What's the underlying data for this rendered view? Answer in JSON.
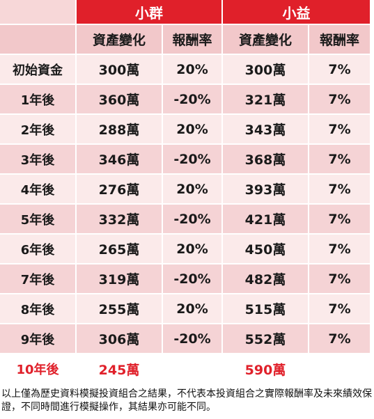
{
  "chart_data": {
    "type": "table",
    "groups": [
      "小群",
      "小益"
    ],
    "columns": [
      "資產變化",
      "報酬率",
      "資產變化",
      "報酬率"
    ],
    "rows": [
      {
        "label": "初始資金",
        "a_asset": "300萬",
        "a_rate": "20%",
        "b_asset": "300萬",
        "b_rate": "7%"
      },
      {
        "label": "1年後",
        "a_asset": "360萬",
        "a_rate": "-20%",
        "b_asset": "321萬",
        "b_rate": "7%"
      },
      {
        "label": "2年後",
        "a_asset": "288萬",
        "a_rate": "20%",
        "b_asset": "343萬",
        "b_rate": "7%"
      },
      {
        "label": "3年後",
        "a_asset": "346萬",
        "a_rate": "-20%",
        "b_asset": "368萬",
        "b_rate": "7%"
      },
      {
        "label": "4年後",
        "a_asset": "276萬",
        "a_rate": "20%",
        "b_asset": "393萬",
        "b_rate": "7%"
      },
      {
        "label": "5年後",
        "a_asset": "332萬",
        "a_rate": "-20%",
        "b_asset": "421萬",
        "b_rate": "7%"
      },
      {
        "label": "6年後",
        "a_asset": "265萬",
        "a_rate": "20%",
        "b_asset": "450萬",
        "b_rate": "7%"
      },
      {
        "label": "7年後",
        "a_asset": "319萬",
        "a_rate": "-20%",
        "b_asset": "482萬",
        "b_rate": "7%"
      },
      {
        "label": "8年後",
        "a_asset": "255萬",
        "a_rate": "20%",
        "b_asset": "515萬",
        "b_rate": "7%"
      },
      {
        "label": "9年後",
        "a_asset": "306萬",
        "a_rate": "-20%",
        "b_asset": "552萬",
        "b_rate": "7%"
      },
      {
        "label": "10年後",
        "a_asset": "245萬",
        "a_rate": "",
        "b_asset": "590萬",
        "b_rate": ""
      }
    ]
  },
  "note": "以上僅為歷史資料模擬投資組合之結果，不代表本投資組合之實際報酬率及未來績效保證，不同時間進行模擬操作，其結果亦可能不同。",
  "colors": {
    "header": "#e0202a",
    "row_dark": "#f5d3d5",
    "row_light": "#fbeaea",
    "highlight": "#e0202a"
  }
}
